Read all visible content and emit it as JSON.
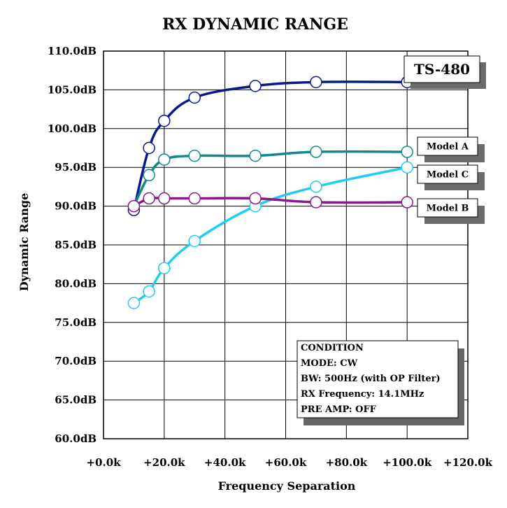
{
  "chart_data": {
    "type": "line",
    "title": "RX DYNAMIC RANGE",
    "xlabel": "Frequency Separation",
    "ylabel": "Dynamic Range",
    "xlim": [
      0,
      120
    ],
    "ylim": [
      60,
      110
    ],
    "grid": true,
    "x_ticks": [
      "+0.0k",
      "+20.0k",
      "+40.0k",
      "+60.0k",
      "+80.0k",
      "+100.0k",
      "+120.0k"
    ],
    "y_ticks": [
      "60.0dB",
      "65.0dB",
      "70.0dB",
      "75.0dB",
      "80.0dB",
      "85.0dB",
      "90.0dB",
      "95.0dB",
      "100.0dB",
      "105.0dB",
      "110.0dB"
    ],
    "series": [
      {
        "name": "TS-480",
        "color": "#0a1a8c",
        "x": [
          10,
          15,
          20,
          30,
          50,
          70,
          100
        ],
        "y": [
          89.5,
          97.5,
          101,
          104,
          105.5,
          106,
          106
        ]
      },
      {
        "name": "Model A",
        "color": "#128a8a",
        "x": [
          10,
          15,
          20,
          30,
          50,
          70,
          100
        ],
        "y": [
          90,
          94,
          96,
          96.5,
          96.5,
          97,
          97
        ]
      },
      {
        "name": "Model C",
        "color": "#22ccee",
        "x": [
          10,
          15,
          20,
          30,
          50,
          70,
          100
        ],
        "y": [
          77.5,
          79,
          82,
          85.5,
          90,
          92.5,
          95
        ]
      },
      {
        "name": "Model B",
        "color": "#8a1a8c",
        "x": [
          10,
          15,
          20,
          30,
          50,
          70,
          100
        ],
        "y": [
          90,
          91,
          91,
          91,
          91,
          90.5,
          90.5
        ]
      }
    ]
  },
  "condition": {
    "title": "CONDITION",
    "lines": [
      "MODE: CW",
      "BW: 500Hz (with OP Filter)",
      "RX Frequency: 14.1MHz",
      "PRE AMP: OFF"
    ]
  }
}
